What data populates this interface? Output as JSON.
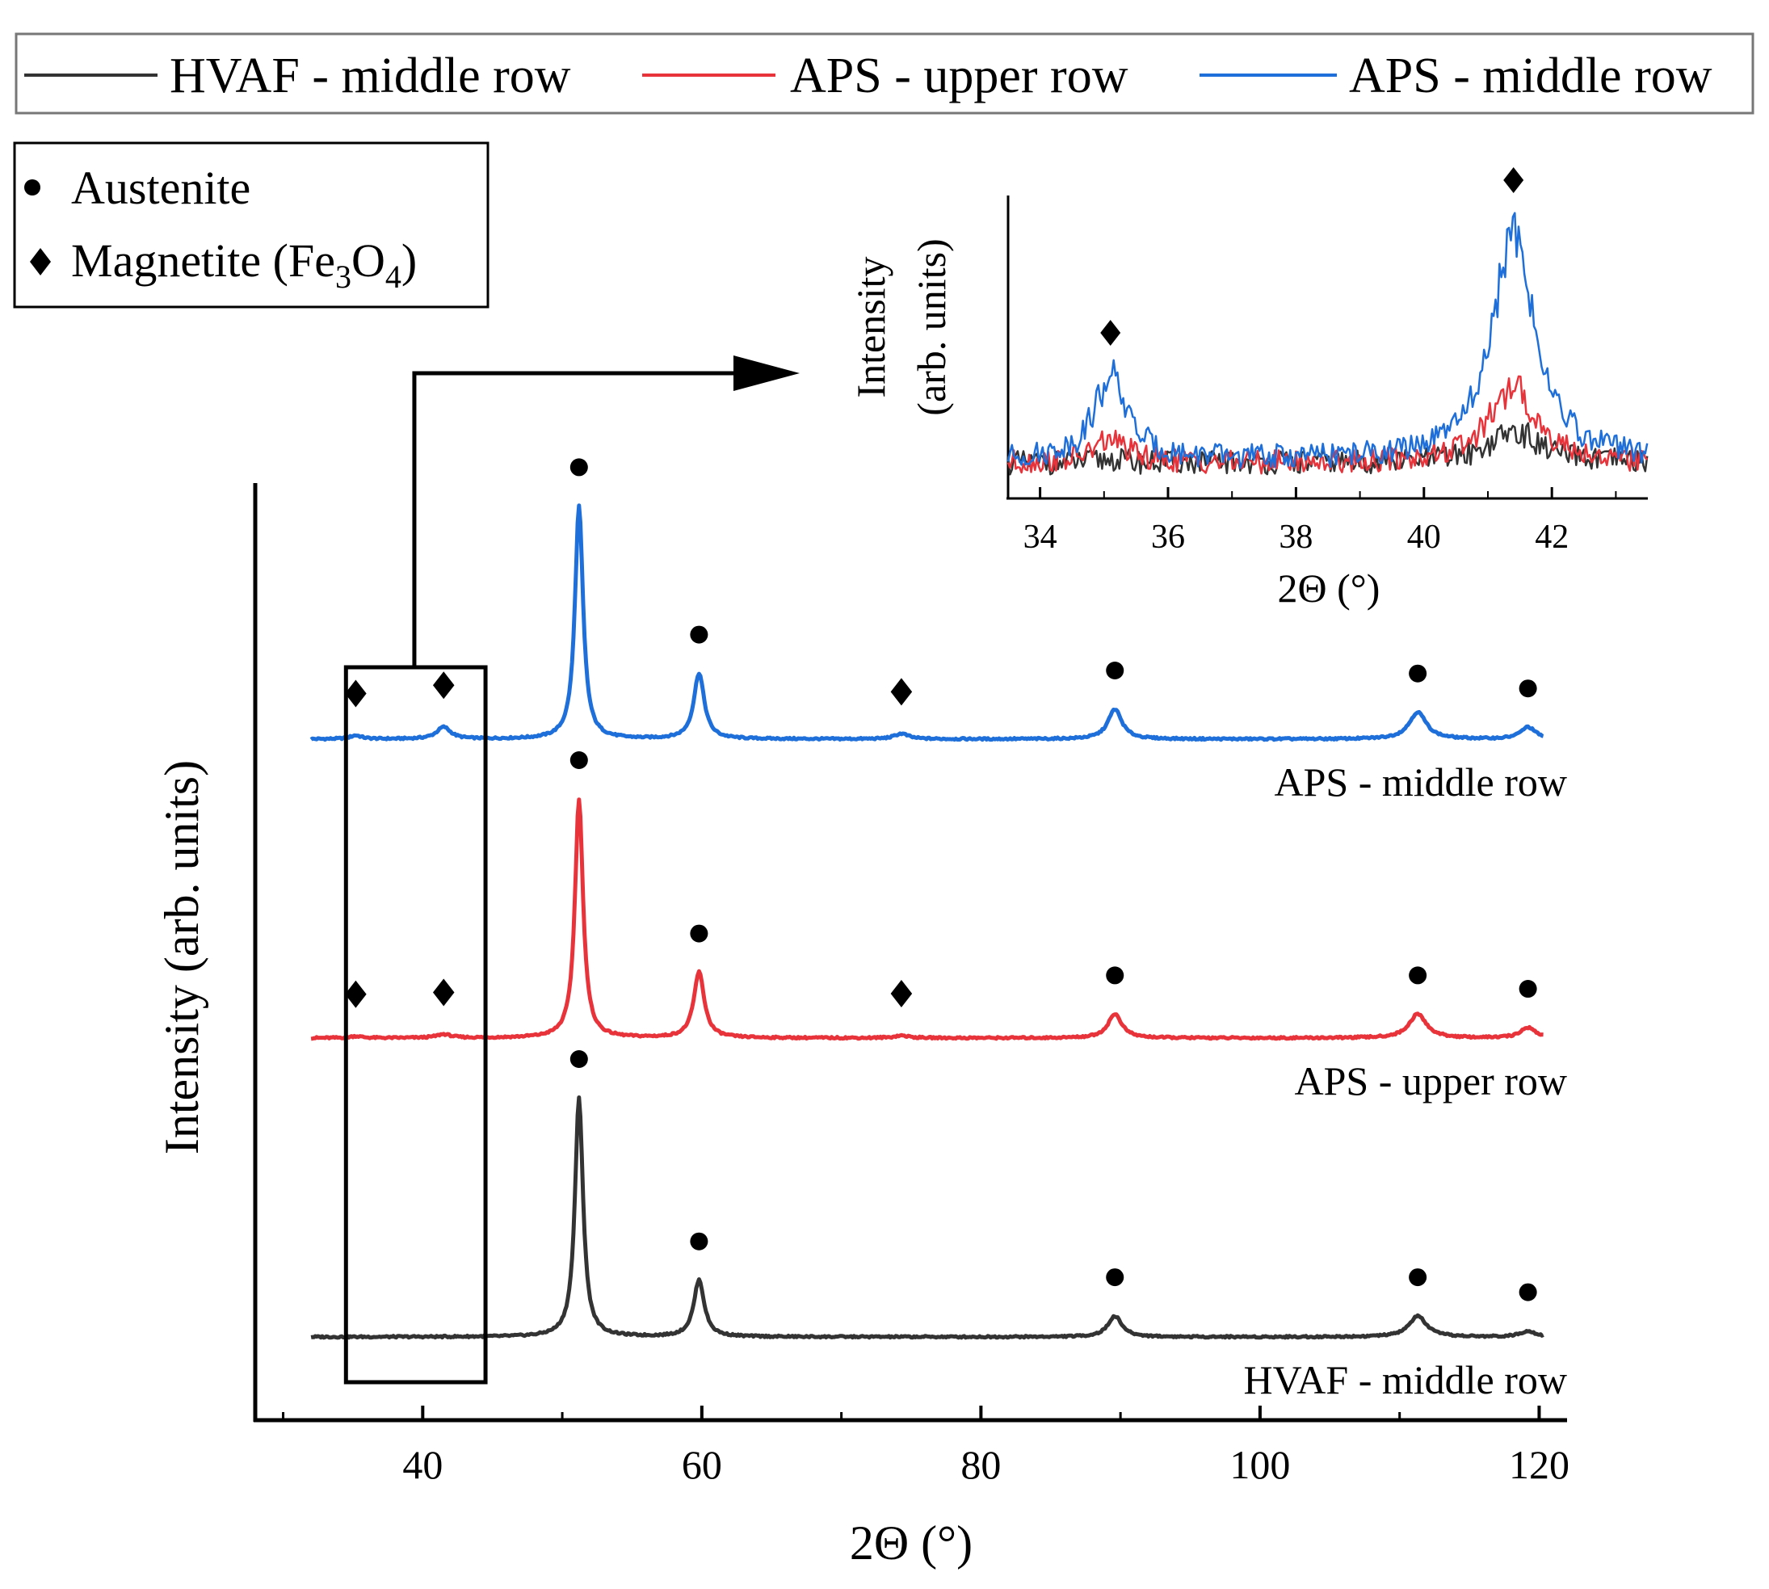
{
  "legend": {
    "series": [
      {
        "label": "HVAF - middle row",
        "color": "#333333"
      },
      {
        "label": "APS - upper row",
        "color": "#e8333b"
      },
      {
        "label": "APS - middle row",
        "color": "#1e6fd9"
      }
    ]
  },
  "phase_legend": {
    "austenite": {
      "label": "Austenite",
      "marker": "circle"
    },
    "magnetite": {
      "label_prefix": "Magnetite (Fe",
      "sub1": "3",
      "mid": "O",
      "sub2": "4",
      "suffix": ")",
      "marker": "diamond"
    }
  },
  "chart_data": [
    {
      "type": "line",
      "title": "",
      "xlabel": "2Θ (°)",
      "ylabel": "Intensity (arb. units)",
      "xlim": [
        28,
        122
      ],
      "xticks": [
        "40",
        "60",
        "80",
        "100",
        "120"
      ],
      "grid": false,
      "series_labels": [
        "APS - middle row",
        "APS - upper row",
        "HVAF - middle row"
      ],
      "series": [
        {
          "name": "APS - middle row",
          "color": "#1e6fd9",
          "offset": 2.0,
          "peaks": [
            {
              "x": 35.2,
              "height": 0.012,
              "width": 0.5
            },
            {
              "x": 41.5,
              "height": 0.04,
              "width": 0.6
            },
            {
              "x": 51.2,
              "height": 0.78,
              "width": 0.35
            },
            {
              "x": 59.8,
              "height": 0.22,
              "width": 0.45
            },
            {
              "x": 74.3,
              "height": 0.018,
              "width": 0.6
            },
            {
              "x": 89.6,
              "height": 0.1,
              "width": 0.6
            },
            {
              "x": 111.3,
              "height": 0.09,
              "width": 0.75
            },
            {
              "x": 119.2,
              "height": 0.04,
              "width": 0.65
            }
          ],
          "markers": [
            {
              "x": 35.2,
              "symbol": "diamond"
            },
            {
              "x": 41.5,
              "symbol": "diamond"
            },
            {
              "x": 51.2,
              "symbol": "circle"
            },
            {
              "x": 59.8,
              "symbol": "circle"
            },
            {
              "x": 74.3,
              "symbol": "diamond"
            },
            {
              "x": 89.6,
              "symbol": "circle"
            },
            {
              "x": 111.3,
              "symbol": "circle"
            },
            {
              "x": 119.2,
              "symbol": "circle"
            }
          ]
        },
        {
          "name": "APS - upper row",
          "color": "#e8333b",
          "offset": 1.0,
          "peaks": [
            {
              "x": 35.2,
              "height": 0.006,
              "width": 0.5
            },
            {
              "x": 41.5,
              "height": 0.012,
              "width": 0.6
            },
            {
              "x": 51.2,
              "height": 0.8,
              "width": 0.35
            },
            {
              "x": 59.8,
              "height": 0.22,
              "width": 0.45
            },
            {
              "x": 74.3,
              "height": 0.008,
              "width": 0.6
            },
            {
              "x": 89.6,
              "height": 0.08,
              "width": 0.6
            },
            {
              "x": 111.3,
              "height": 0.08,
              "width": 0.75
            },
            {
              "x": 119.2,
              "height": 0.035,
              "width": 0.65
            }
          ],
          "markers": [
            {
              "x": 35.2,
              "symbol": "diamond"
            },
            {
              "x": 41.5,
              "symbol": "diamond"
            },
            {
              "x": 51.2,
              "symbol": "circle"
            },
            {
              "x": 59.8,
              "symbol": "circle"
            },
            {
              "x": 74.3,
              "symbol": "diamond"
            },
            {
              "x": 89.6,
              "symbol": "circle"
            },
            {
              "x": 111.3,
              "symbol": "circle"
            },
            {
              "x": 119.2,
              "symbol": "circle"
            }
          ]
        },
        {
          "name": "HVAF - middle row",
          "color": "#333333",
          "offset": 0.0,
          "peaks": [
            {
              "x": 51.2,
              "height": 0.8,
              "width": 0.35
            },
            {
              "x": 59.8,
              "height": 0.19,
              "width": 0.45
            },
            {
              "x": 89.6,
              "height": 0.07,
              "width": 0.6
            },
            {
              "x": 111.3,
              "height": 0.07,
              "width": 0.75
            },
            {
              "x": 119.2,
              "height": 0.02,
              "width": 0.65
            }
          ],
          "markers": [
            {
              "x": 51.2,
              "symbol": "circle"
            },
            {
              "x": 59.8,
              "symbol": "circle"
            },
            {
              "x": 89.6,
              "symbol": "circle"
            },
            {
              "x": 111.3,
              "symbol": "circle"
            },
            {
              "x": 119.2,
              "symbol": "circle"
            }
          ]
        }
      ],
      "highlight_region": {
        "x": [
          34.5,
          44.5
        ]
      }
    },
    {
      "type": "line",
      "title": "",
      "xlabel": "2Θ (°)",
      "ylabel_line1": "Intensity",
      "ylabel_line2": "(arb. units)",
      "xlim": [
        33.5,
        43.5
      ],
      "xticks": [
        "34",
        "36",
        "38",
        "40",
        "42"
      ],
      "grid": false,
      "series": [
        {
          "name": "HVAF - middle row",
          "color": "#333333",
          "baseline": 0.04,
          "peaks": [
            {
              "x": 35.1,
              "height": 0.01,
              "width": 0.3
            },
            {
              "x": 41.4,
              "height": 0.09,
              "width": 0.5
            }
          ]
        },
        {
          "name": "APS - upper row",
          "color": "#e8333b",
          "baseline": 0.04,
          "peaks": [
            {
              "x": 35.1,
              "height": 0.07,
              "width": 0.3
            },
            {
              "x": 41.4,
              "height": 0.22,
              "width": 0.45
            }
          ]
        },
        {
          "name": "APS - middle row",
          "color": "#1e6fd9",
          "baseline": 0.05,
          "peaks": [
            {
              "x": 35.1,
              "height": 0.25,
              "width": 0.3
            },
            {
              "x": 41.4,
              "height": 0.7,
              "width": 0.38
            }
          ]
        }
      ],
      "markers": [
        {
          "x": 35.1,
          "symbol": "diamond"
        },
        {
          "x": 41.4,
          "symbol": "diamond"
        }
      ]
    }
  ]
}
